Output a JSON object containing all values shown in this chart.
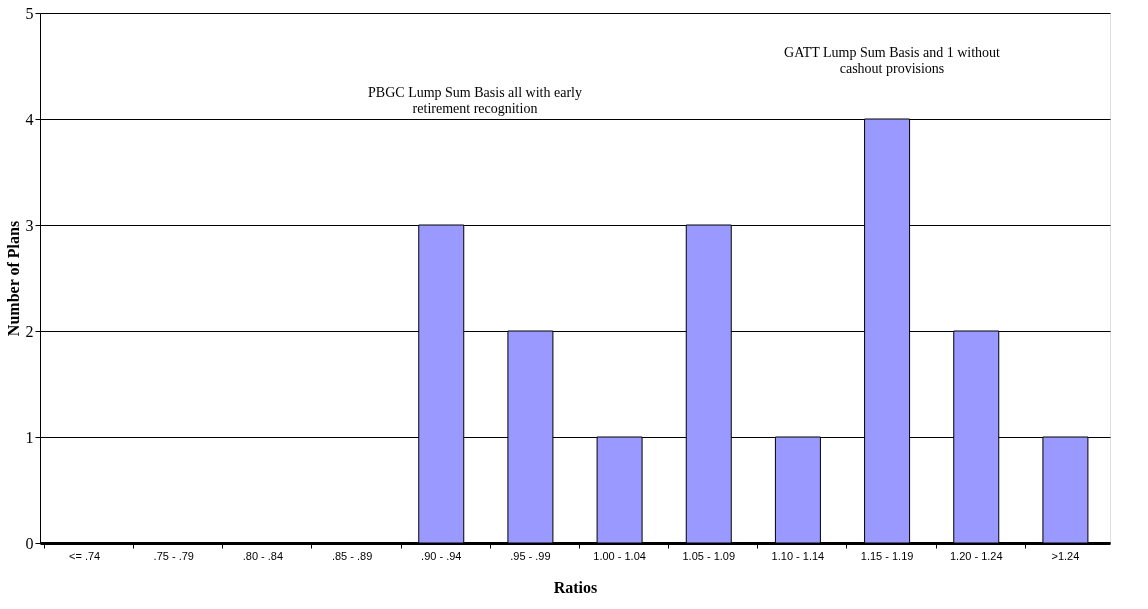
{
  "chart_data": {
    "type": "bar",
    "xlabel": "Ratios",
    "ylabel": "Number of Plans",
    "categories": [
      "<= .74",
      ".75 - .79",
      ".80 - .84",
      ".85 - .89",
      ".90 - .94",
      ".95 - .99",
      "1.00 - 1.04",
      "1.05 - 1.09",
      "1.10 - 1.14",
      "1.15 - 1.19",
      "1.20 - 1.24",
      ">1.24"
    ],
    "values": [
      0,
      0,
      0,
      0,
      3,
      2,
      1,
      3,
      1,
      4,
      2,
      1
    ],
    "color": "#9999ff",
    "ylim": [
      0,
      5
    ],
    "yticks": [
      0,
      1,
      2,
      3,
      4,
      5
    ],
    "grid": "y",
    "annotations": [
      "PBGC Lump Sum Basis all with early\nretirement recognition",
      "GATT Lump Sum Basis and 1 without\ncashout provisions"
    ]
  }
}
